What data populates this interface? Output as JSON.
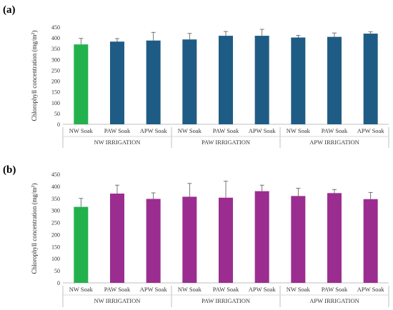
{
  "chart_data": [
    {
      "type": "bar",
      "panel_label": "(a)",
      "ylabel_main": "Chlorophyll  concentration  (mg/m",
      "ylabel_sup": "2",
      "ylabel_end": ")",
      "ylim": [
        0,
        450
      ],
      "yticks": [
        "0",
        "50",
        "100",
        "150",
        "200",
        "250",
        "300",
        "350",
        "400",
        "450"
      ],
      "categories": [
        "NW Soak",
        "PAW Soak",
        "APW Soak",
        "NW Soak",
        "PAW Soak",
        "APW Soak",
        "NW Soak",
        "PAW Soak",
        "APW Soak"
      ],
      "groups": [
        "NW IRRIGATION",
        "PAW IRRIGATION",
        "APW IRRIGATION"
      ],
      "values": [
        370,
        383,
        388,
        393,
        410,
        410,
        402,
        405,
        420
      ],
      "errors": [
        28,
        14,
        38,
        28,
        20,
        30,
        10,
        18,
        8
      ],
      "colors": [
        "#22b14c",
        "#1f5c85",
        "#1f5c85",
        "#1f5c85",
        "#1f5c85",
        "#1f5c85",
        "#1f5c85",
        "#1f5c85",
        "#1f5c85"
      ],
      "grid": false
    },
    {
      "type": "bar",
      "panel_label": "(b)",
      "ylabel_main": "Chlorophyll  concentration  (mg/m",
      "ylabel_sup": "2",
      "ylabel_end": ")",
      "ylim": [
        0,
        450
      ],
      "yticks": [
        "0",
        "50",
        "100",
        "150",
        "200",
        "250",
        "300",
        "350",
        "400",
        "450"
      ],
      "categories": [
        "NW Soak",
        "PAW Soak",
        "APW Soak",
        "NW Soak",
        "PAW Soak",
        "APW Soak",
        "NW Soak",
        "PAW Soak",
        "APW Soak"
      ],
      "groups": [
        "NW IRRIGATION",
        "PAW IRRIGATION",
        "APW IRRIGATION"
      ],
      "values": [
        315,
        370,
        348,
        357,
        353,
        380,
        360,
        372,
        347
      ],
      "errors": [
        35,
        35,
        25,
        55,
        68,
        25,
        32,
        15,
        28
      ],
      "colors": [
        "#22b14c",
        "#9b2d91",
        "#9b2d91",
        "#9b2d91",
        "#9b2d91",
        "#9b2d91",
        "#9b2d91",
        "#9b2d91",
        "#9b2d91"
      ],
      "grid": false
    }
  ]
}
